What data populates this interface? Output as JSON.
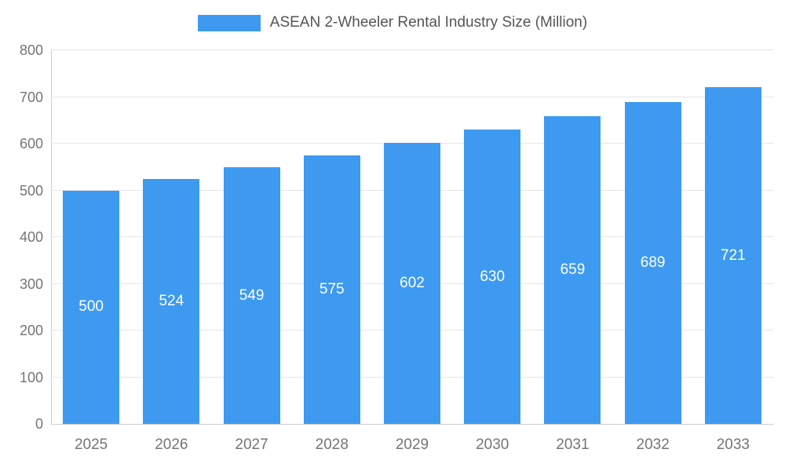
{
  "chart_data": {
    "type": "bar",
    "title": "ASEAN 2-Wheeler Rental Industry Size (Million)",
    "categories": [
      "2025",
      "2026",
      "2027",
      "2028",
      "2029",
      "2030",
      "2031",
      "2032",
      "2033"
    ],
    "values": [
      500,
      524,
      549,
      575,
      602,
      630,
      659,
      689,
      721
    ],
    "xlabel": "",
    "ylabel": "",
    "ylim": [
      0,
      800
    ],
    "ytick_step": 100,
    "yticks": [
      0,
      100,
      200,
      300,
      400,
      500,
      600,
      700,
      800
    ],
    "grid": true,
    "legend_position": "top",
    "colors": {
      "bar": "#3d9af0",
      "value_label": "#ffffff",
      "axis_text": "#757575",
      "title_text": "#555555",
      "gridline": "#e6e6e6",
      "axis_line": "#cccccc"
    }
  }
}
